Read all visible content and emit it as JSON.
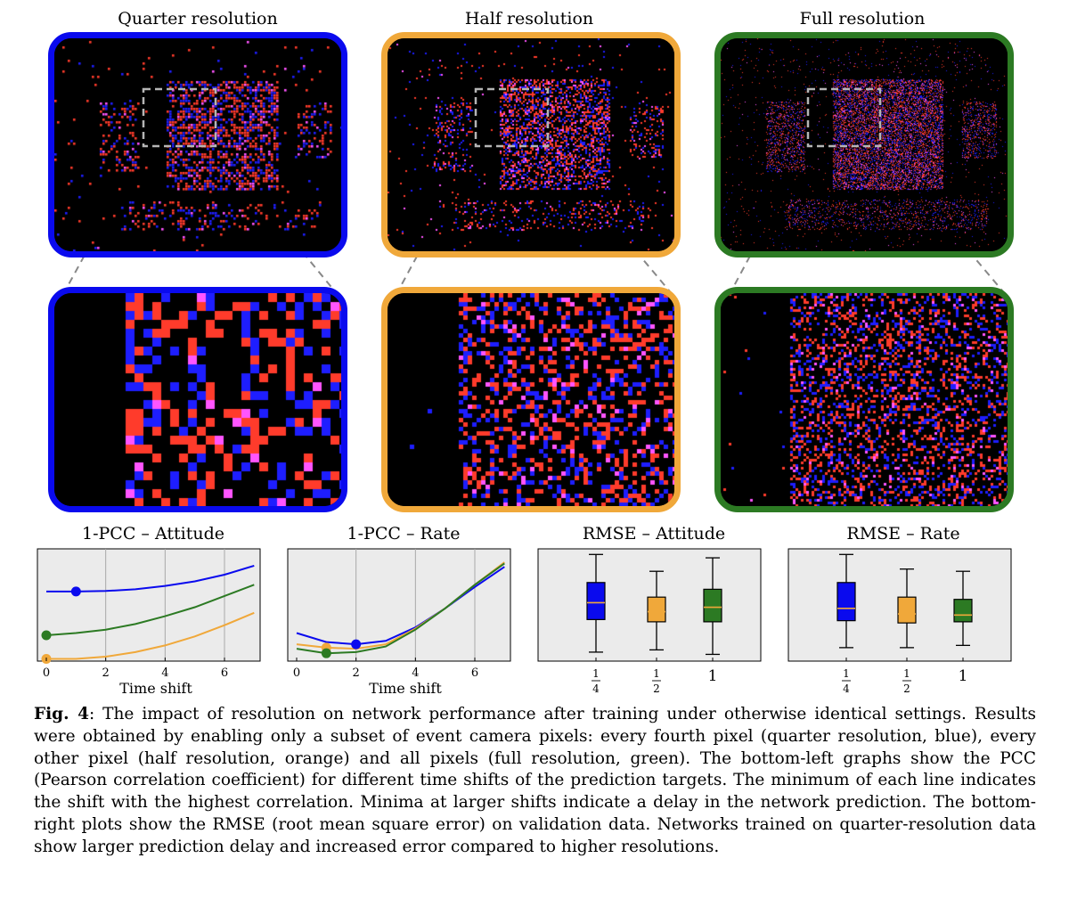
{
  "figure": {
    "panel_titles": [
      "Quarter resolution",
      "Half resolution",
      "Full resolution"
    ],
    "colors": {
      "blue": "#0a0aee",
      "orange": "#f0a83a",
      "green": "#2c7a23",
      "grid": "#a8a8a8",
      "plot_bg": "#ebebeb",
      "event_red": "#ff3b2b",
      "event_blue": "#1e1eff",
      "event_pink": "#ff55ff"
    },
    "plot_titles": [
      "1-PCC – Attitude",
      "1-PCC – Rate",
      "RMSE – Attitude",
      "RMSE – Rate"
    ],
    "xlabels": [
      "Time shift",
      "Time shift"
    ],
    "time_ticks": [
      "0",
      "2",
      "4",
      "6"
    ],
    "box_ticks": [
      "1/4",
      "1/2",
      "1"
    ]
  },
  "chart_data": [
    {
      "type": "line",
      "title": "1-PCC – Attitude",
      "xlabel": "Time shift",
      "ylabel": "",
      "xlim": [
        -0.3,
        7.2
      ],
      "ylim": [
        0,
        1
      ],
      "grid": true,
      "x": [
        0,
        1,
        2,
        3,
        4,
        5,
        6,
        7
      ],
      "series": [
        {
          "name": "quarter",
          "color": "#0a0aee",
          "values": [
            0.62,
            0.62,
            0.625,
            0.64,
            0.67,
            0.71,
            0.77,
            0.85
          ],
          "minimum_x": 1
        },
        {
          "name": "full",
          "color": "#2c7a23",
          "values": [
            0.23,
            0.25,
            0.28,
            0.33,
            0.4,
            0.48,
            0.58,
            0.68
          ],
          "minimum_x": 0
        },
        {
          "name": "half",
          "color": "#f0a83a",
          "values": [
            0.02,
            0.02,
            0.04,
            0.08,
            0.14,
            0.22,
            0.32,
            0.43
          ],
          "minimum_x": 0
        }
      ]
    },
    {
      "type": "line",
      "title": "1-PCC – Rate",
      "xlabel": "Time shift",
      "ylabel": "",
      "xlim": [
        -0.3,
        7.2
      ],
      "ylim": [
        0,
        1
      ],
      "grid": true,
      "x": [
        0,
        1,
        2,
        3,
        4,
        5,
        6,
        7
      ],
      "series": [
        {
          "name": "quarter",
          "color": "#0a0aee",
          "values": [
            0.25,
            0.17,
            0.15,
            0.18,
            0.3,
            0.47,
            0.66,
            0.84
          ],
          "minimum_x": 2
        },
        {
          "name": "half",
          "color": "#f0a83a",
          "values": [
            0.15,
            0.12,
            0.11,
            0.15,
            0.29,
            0.47,
            0.68,
            0.88
          ],
          "minimum_x": 1
        },
        {
          "name": "full",
          "color": "#2c7a23",
          "values": [
            0.11,
            0.07,
            0.08,
            0.13,
            0.28,
            0.47,
            0.68,
            0.87
          ],
          "minimum_x": 1
        }
      ]
    },
    {
      "type": "box",
      "title": "RMSE – Attitude",
      "categories": [
        "1/4",
        "1/2",
        "1"
      ],
      "ylim": [
        0,
        1
      ],
      "boxes": [
        {
          "color": "#0a0aee",
          "whisker_low": 0.08,
          "q1": 0.37,
          "median": 0.52,
          "q3": 0.7,
          "whisker_high": 0.95
        },
        {
          "color": "#f0a83a",
          "whisker_low": 0.1,
          "q1": 0.35,
          "median": 0.44,
          "q3": 0.57,
          "whisker_high": 0.8
        },
        {
          "color": "#2c7a23",
          "whisker_low": 0.06,
          "q1": 0.35,
          "median": 0.48,
          "q3": 0.64,
          "whisker_high": 0.92
        }
      ]
    },
    {
      "type": "box",
      "title": "RMSE – Rate",
      "categories": [
        "1/4",
        "1/2",
        "1"
      ],
      "ylim": [
        0,
        1
      ],
      "boxes": [
        {
          "color": "#0a0aee",
          "whisker_low": 0.12,
          "q1": 0.36,
          "median": 0.47,
          "q3": 0.7,
          "whisker_high": 0.95
        },
        {
          "color": "#f0a83a",
          "whisker_low": 0.12,
          "q1": 0.34,
          "median": 0.42,
          "q3": 0.57,
          "whisker_high": 0.82
        },
        {
          "color": "#2c7a23",
          "whisker_low": 0.14,
          "q1": 0.35,
          "median": 0.41,
          "q3": 0.55,
          "whisker_high": 0.8
        }
      ]
    }
  ],
  "caption": {
    "label": "Fig. 4",
    "text": ": The impact of resolution on network performance after training under otherwise identical settings. Results were obtained by enabling only a subset of event camera pixels: every fourth pixel (quarter resolution, blue), every other pixel (half resolution, orange) and all pixels (full resolution, green). The bottom-left graphs show the PCC (Pearson correlation coefficient) for different time shifts of the prediction targets. The minimum of each line indicates the shift with the highest correlation. Minima at larger shifts indicate a delay in the network prediction. The bottom-right plots show the RMSE (root mean square error) on validation data. Networks trained on quarter-resolution data show larger prediction delay and increased error compared to higher resolutions."
  }
}
